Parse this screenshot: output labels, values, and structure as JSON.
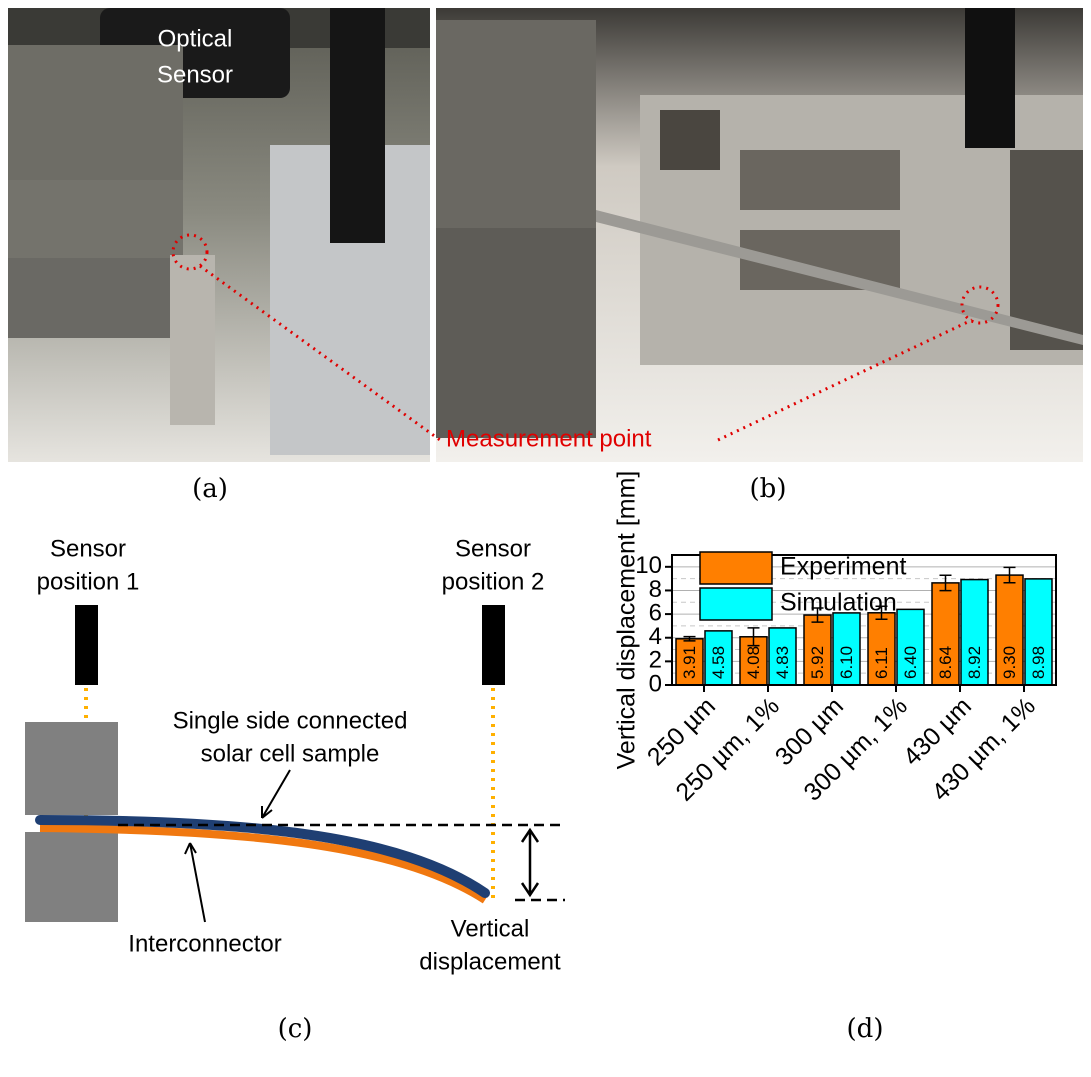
{
  "photos": {
    "a": {
      "caption": "(a)",
      "annotation": [
        "Optical",
        "Sensor"
      ]
    },
    "b": {
      "caption": "(b)"
    },
    "measurement_label": "Measurement point"
  },
  "diagram": {
    "caption": "(c)",
    "sensor_1": [
      "Sensor",
      "position 1"
    ],
    "sensor_2": [
      "Sensor",
      "position 2"
    ],
    "sample_label": [
      "Single side connected",
      "solar cell sample"
    ],
    "interconnector": "Interconnector",
    "displacement": [
      "Vertical",
      "displacement"
    ]
  },
  "chart_data": {
    "type": "bar",
    "caption": "(d)",
    "y_label": "Vertical displacement [mm]",
    "categories": [
      "250 µm",
      "250 µm, 1%",
      "300 µm",
      "300 µm, 1%",
      "430 µm",
      "430 µm, 1%"
    ],
    "series": [
      {
        "name": "Experiment",
        "color": "#ff7f00",
        "values": [
          3.91,
          4.08,
          5.92,
          6.11,
          8.64,
          9.3
        ],
        "value_labels": [
          "3.91",
          "4.08",
          "5.92",
          "6.11",
          "8.64",
          "9.30"
        ],
        "errors": [
          0.18,
          0.75,
          0.6,
          0.55,
          0.65,
          0.65
        ]
      },
      {
        "name": "Simulation",
        "color": "#00ffff",
        "values": [
          4.58,
          4.83,
          6.1,
          6.4,
          8.92,
          8.98
        ],
        "value_labels": [
          "4.58",
          "4.83",
          "6.10",
          "6.40",
          "8.92",
          "8.98"
        ]
      }
    ],
    "ylim": [
      0,
      11
    ],
    "yticks": [
      0,
      2,
      4,
      6,
      8,
      10
    ],
    "grid": true,
    "minor_grid": true,
    "legend": "upper left"
  }
}
